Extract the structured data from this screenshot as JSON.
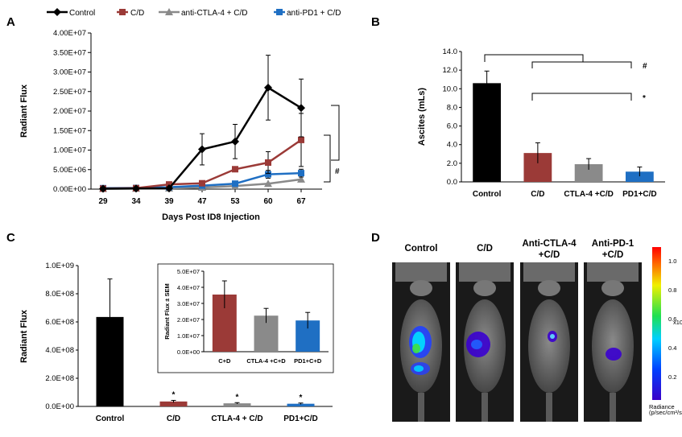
{
  "panels": {
    "a": "A",
    "b": "B",
    "c": "C",
    "d": "D"
  },
  "chart_data": [
    {
      "panel": "A",
      "type": "line",
      "x": [
        "29",
        "34",
        "39",
        "47",
        "53",
        "60",
        "67"
      ],
      "xlabel": "Days Post ID8 Injection",
      "ylabel": "Radiant Flux",
      "ylim": [
        0,
        40000000
      ],
      "yticks": [
        "0.00E+00",
        "5.00E+06",
        "1.00E+07",
        "1.50E+07",
        "2.00E+07",
        "2.50E+07",
        "3.00E+07",
        "3.50E+07",
        "4.00E+07"
      ],
      "series": [
        {
          "name": "Control",
          "color": "#000000",
          "marker": "diamond",
          "values": [
            100000,
            150000,
            200000,
            10200000,
            12200000,
            26000000,
            20800000
          ],
          "err": [
            0,
            0,
            0,
            4000000,
            4400000,
            8300000,
            7400000
          ]
        },
        {
          "name": "C/D",
          "color": "#9b3a37",
          "marker": "square",
          "values": [
            150000,
            250000,
            1200000,
            1500000,
            5100000,
            6800000,
            12600000
          ],
          "err": [
            0,
            0,
            0,
            0,
            0,
            2800000,
            6800000
          ]
        },
        {
          "name": "anti-CTLA-4 + C/D",
          "color": "#8a8a8a",
          "marker": "triangle",
          "values": [
            100000,
            150000,
            200000,
            400000,
            800000,
            1400000,
            2500000
          ],
          "err": [
            0,
            0,
            0,
            0,
            0,
            0,
            0
          ]
        },
        {
          "name": "anti-PD1 + C/D",
          "color": "#1f6fc3",
          "marker": "square",
          "values": [
            250000,
            300000,
            500000,
            900000,
            1400000,
            3800000,
            4100000
          ],
          "err": [
            0,
            0,
            0,
            0,
            0,
            1000000,
            1000000
          ]
        }
      ],
      "annotations": [
        "#"
      ]
    },
    {
      "panel": "B",
      "type": "bar",
      "categories": [
        "Control",
        "C/D",
        "CTLA-4 +C/D",
        "PD1+C/D"
      ],
      "values": [
        10.6,
        3.1,
        1.9,
        1.1
      ],
      "err": [
        1.3,
        1.1,
        0.6,
        0.5
      ],
      "colors": [
        "#000000",
        "#9b3a37",
        "#8a8a8a",
        "#1f6fc3"
      ],
      "ylabel": "Ascites (mLs)",
      "ylim": [
        0,
        14
      ],
      "yticks": [
        "0.0",
        "2.0",
        "4.0",
        "6.0",
        "8.0",
        "10.0",
        "12.0",
        "14.0"
      ],
      "annotations": [
        "#",
        "*"
      ]
    },
    {
      "panel": "C",
      "type": "bar",
      "categories": [
        "Control",
        "C/D",
        "CTLA-4 + C/D",
        "PD1+C/D"
      ],
      "values": [
        635000000,
        35000000,
        22000000,
        19000000
      ],
      "err": [
        270000000,
        8000000,
        5000000,
        5000000
      ],
      "colors": [
        "#000000",
        "#9b3a37",
        "#8a8a8a",
        "#1f6fc3"
      ],
      "ylabel": "Radiant Flux",
      "ylim": [
        0,
        1000000000
      ],
      "yticks": [
        "0.0E+00",
        "2.0E+08",
        "4.0E+08",
        "6.0E+08",
        "8.0E+08",
        "1.0E+09"
      ],
      "annotations": [
        "*",
        "*",
        "*"
      ]
    },
    {
      "panel": "C-inset",
      "type": "bar",
      "categories": [
        "C+D",
        "CTLA-4 +C+D",
        "PD1+C+D"
      ],
      "values": [
        35500000,
        22400000,
        19400000
      ],
      "err": [
        8500000,
        4500000,
        5000000
      ],
      "colors": [
        "#9b3a37",
        "#8a8a8a",
        "#1f6fc3"
      ],
      "ylabel": "Radiant Flux ± SEM",
      "ylim": [
        0,
        50000000
      ],
      "yticks": [
        "0.0E+00",
        "1.0E+07",
        "2.0E+07",
        "3.0E+07",
        "4.0E+07",
        "5.0E+07"
      ]
    }
  ],
  "panel_d": {
    "labels": [
      "Control",
      "C/D",
      "Anti-CTLA-4\n+C/D",
      "Anti-PD-1\n+C/D"
    ],
    "colorbar_ticks": [
      "1.0",
      "0.8",
      "0.6",
      "0.4",
      "0.2"
    ],
    "colorbar_exponent": "x10⁶",
    "colorbar_title": "Radiance",
    "colorbar_units": "(p/sec/cm²/sr)"
  }
}
